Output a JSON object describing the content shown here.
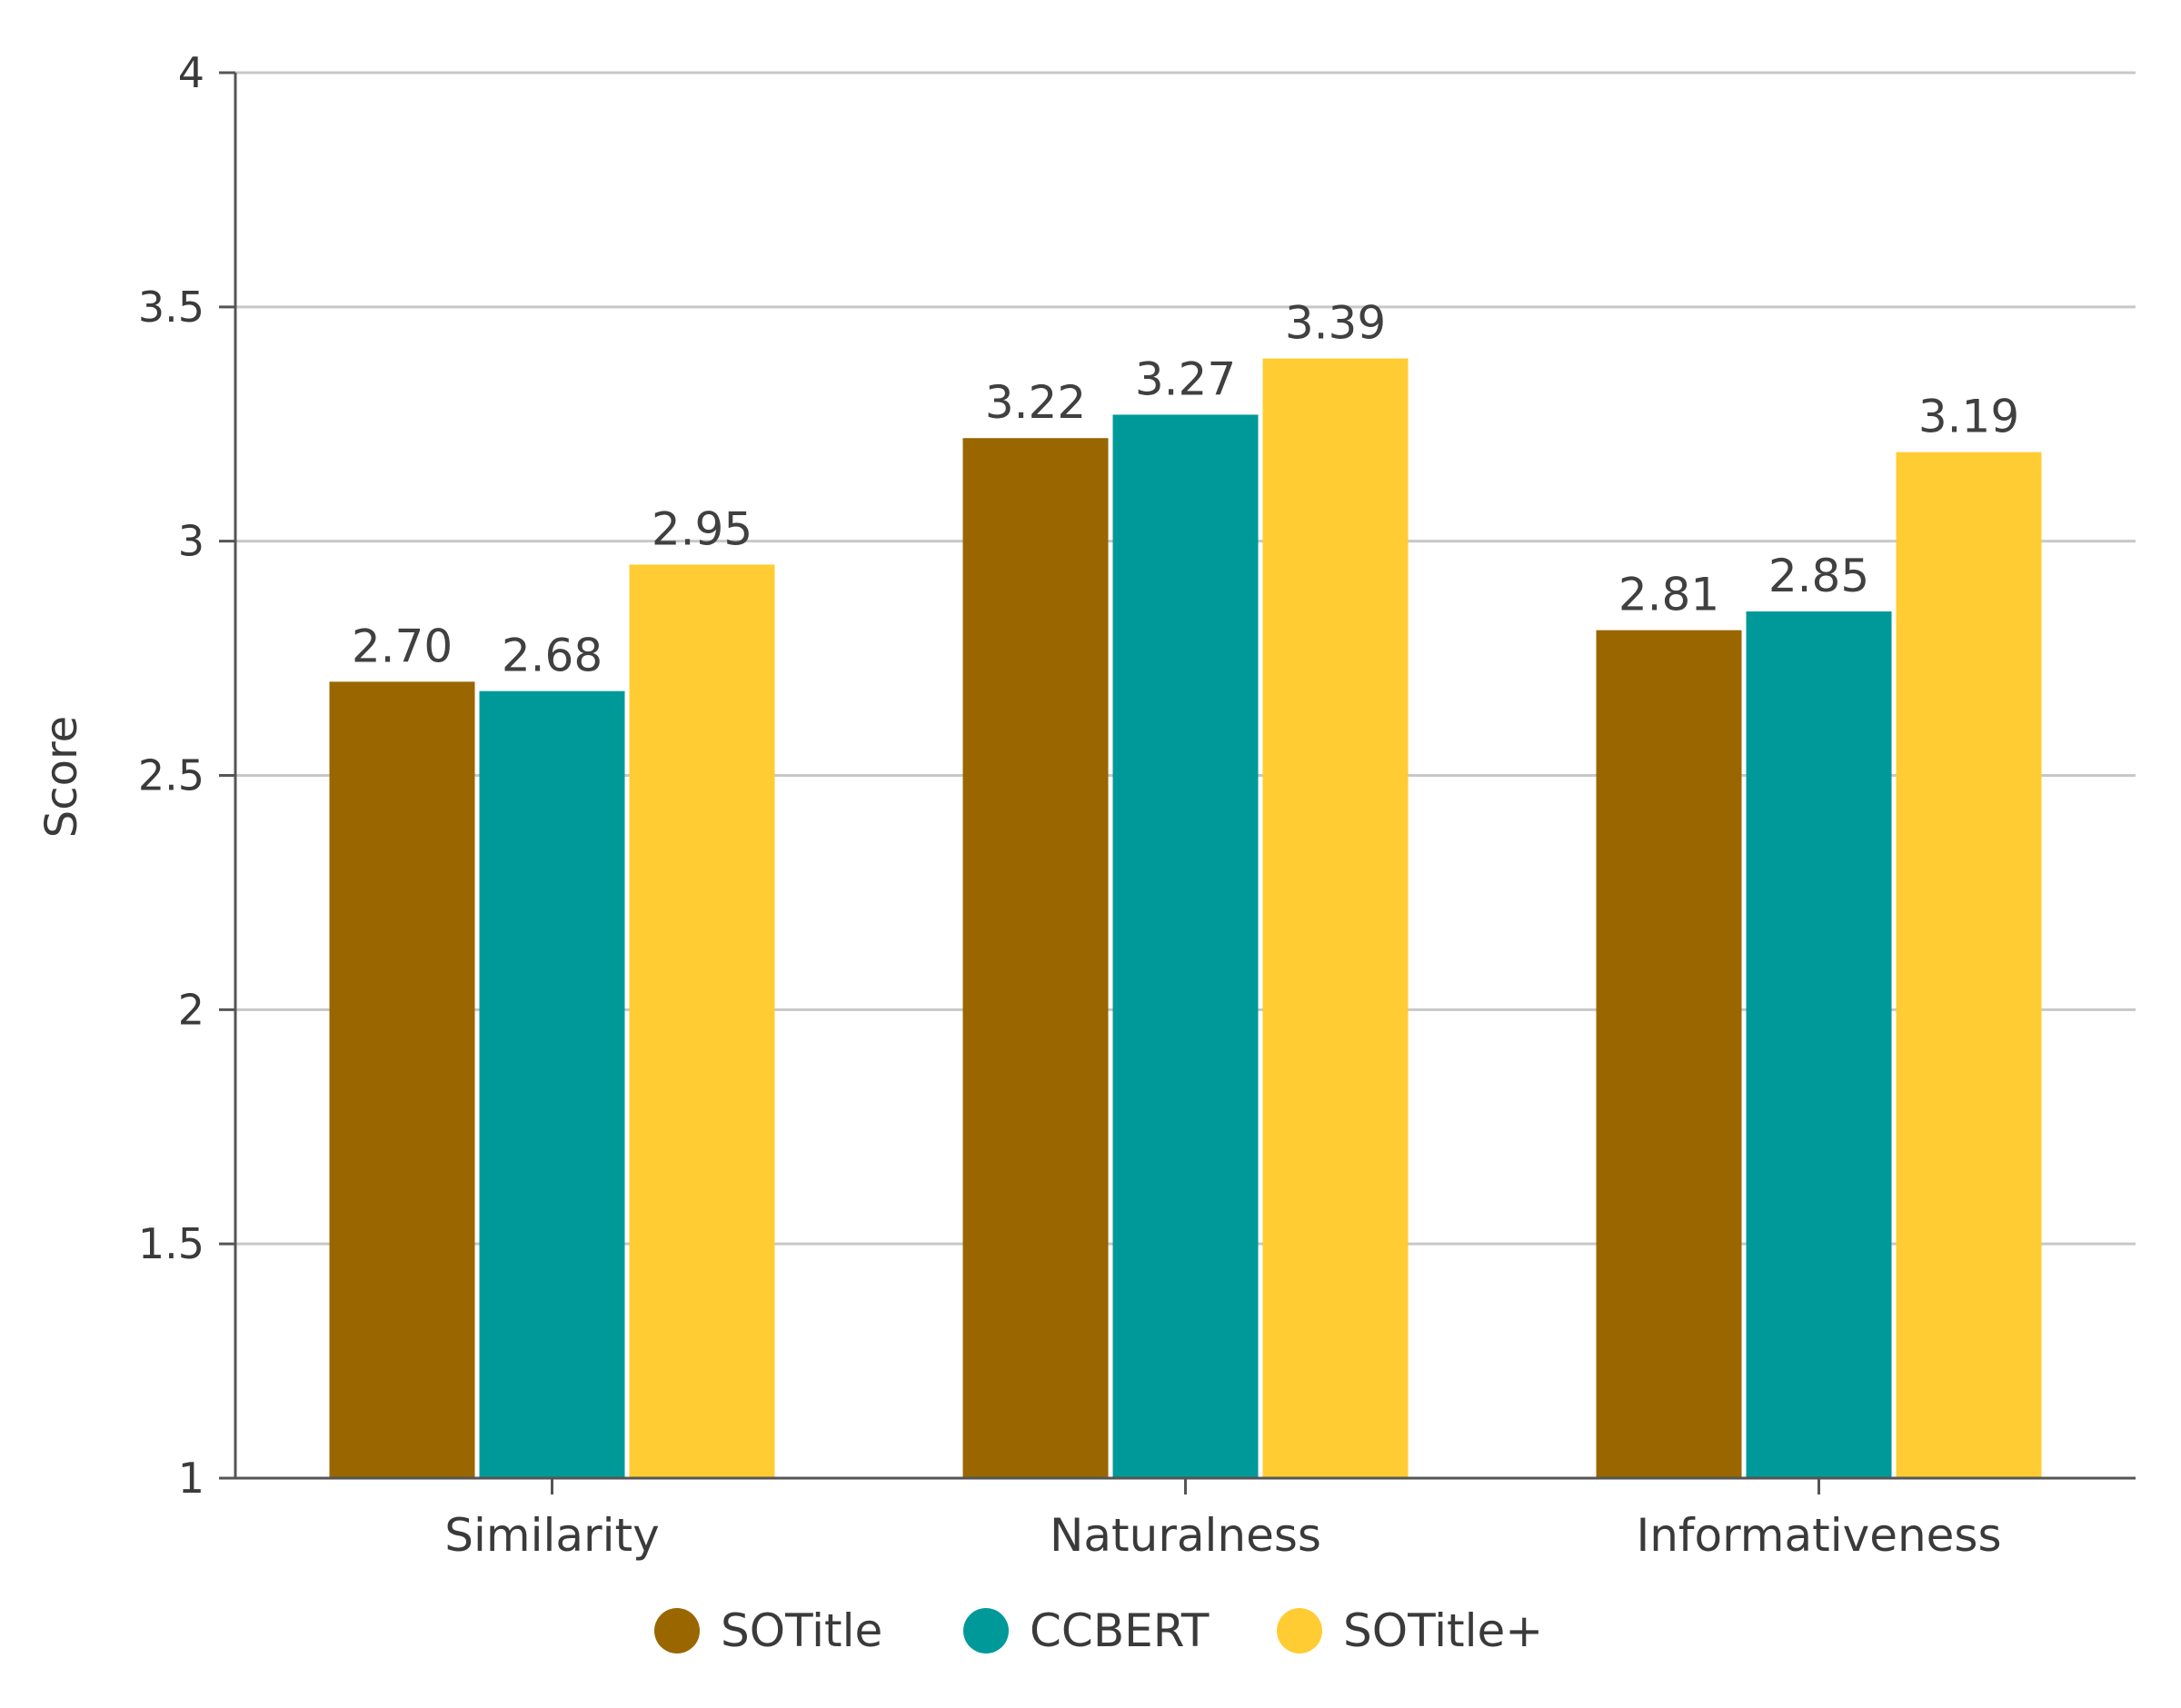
{
  "chart_data": {
    "type": "bar",
    "categories": [
      "Similarity",
      "Naturalness",
      "Informativeness"
    ],
    "series": [
      {
        "name": "SOTitle",
        "color": "#996600",
        "values": [
          2.7,
          3.22,
          2.81
        ],
        "labels": [
          "2.70",
          "3.22",
          "2.81"
        ]
      },
      {
        "name": "CCBERT",
        "color": "#009999",
        "values": [
          2.68,
          3.27,
          2.85
        ],
        "labels": [
          "2.68",
          "3.27",
          "2.85"
        ]
      },
      {
        "name": "SOTitle+",
        "color": "#FFCC33",
        "values": [
          2.95,
          3.39,
          3.19
        ],
        "labels": [
          "2.95",
          "3.39",
          "3.19"
        ]
      }
    ],
    "title": "",
    "xlabel": "",
    "ylabel": "Score",
    "ylim": [
      1,
      4
    ],
    "yticks": [
      "1",
      "1.5",
      "2",
      "2.5",
      "3",
      "3.5",
      "4"
    ],
    "grid": true,
    "legend_position": "bottom"
  }
}
